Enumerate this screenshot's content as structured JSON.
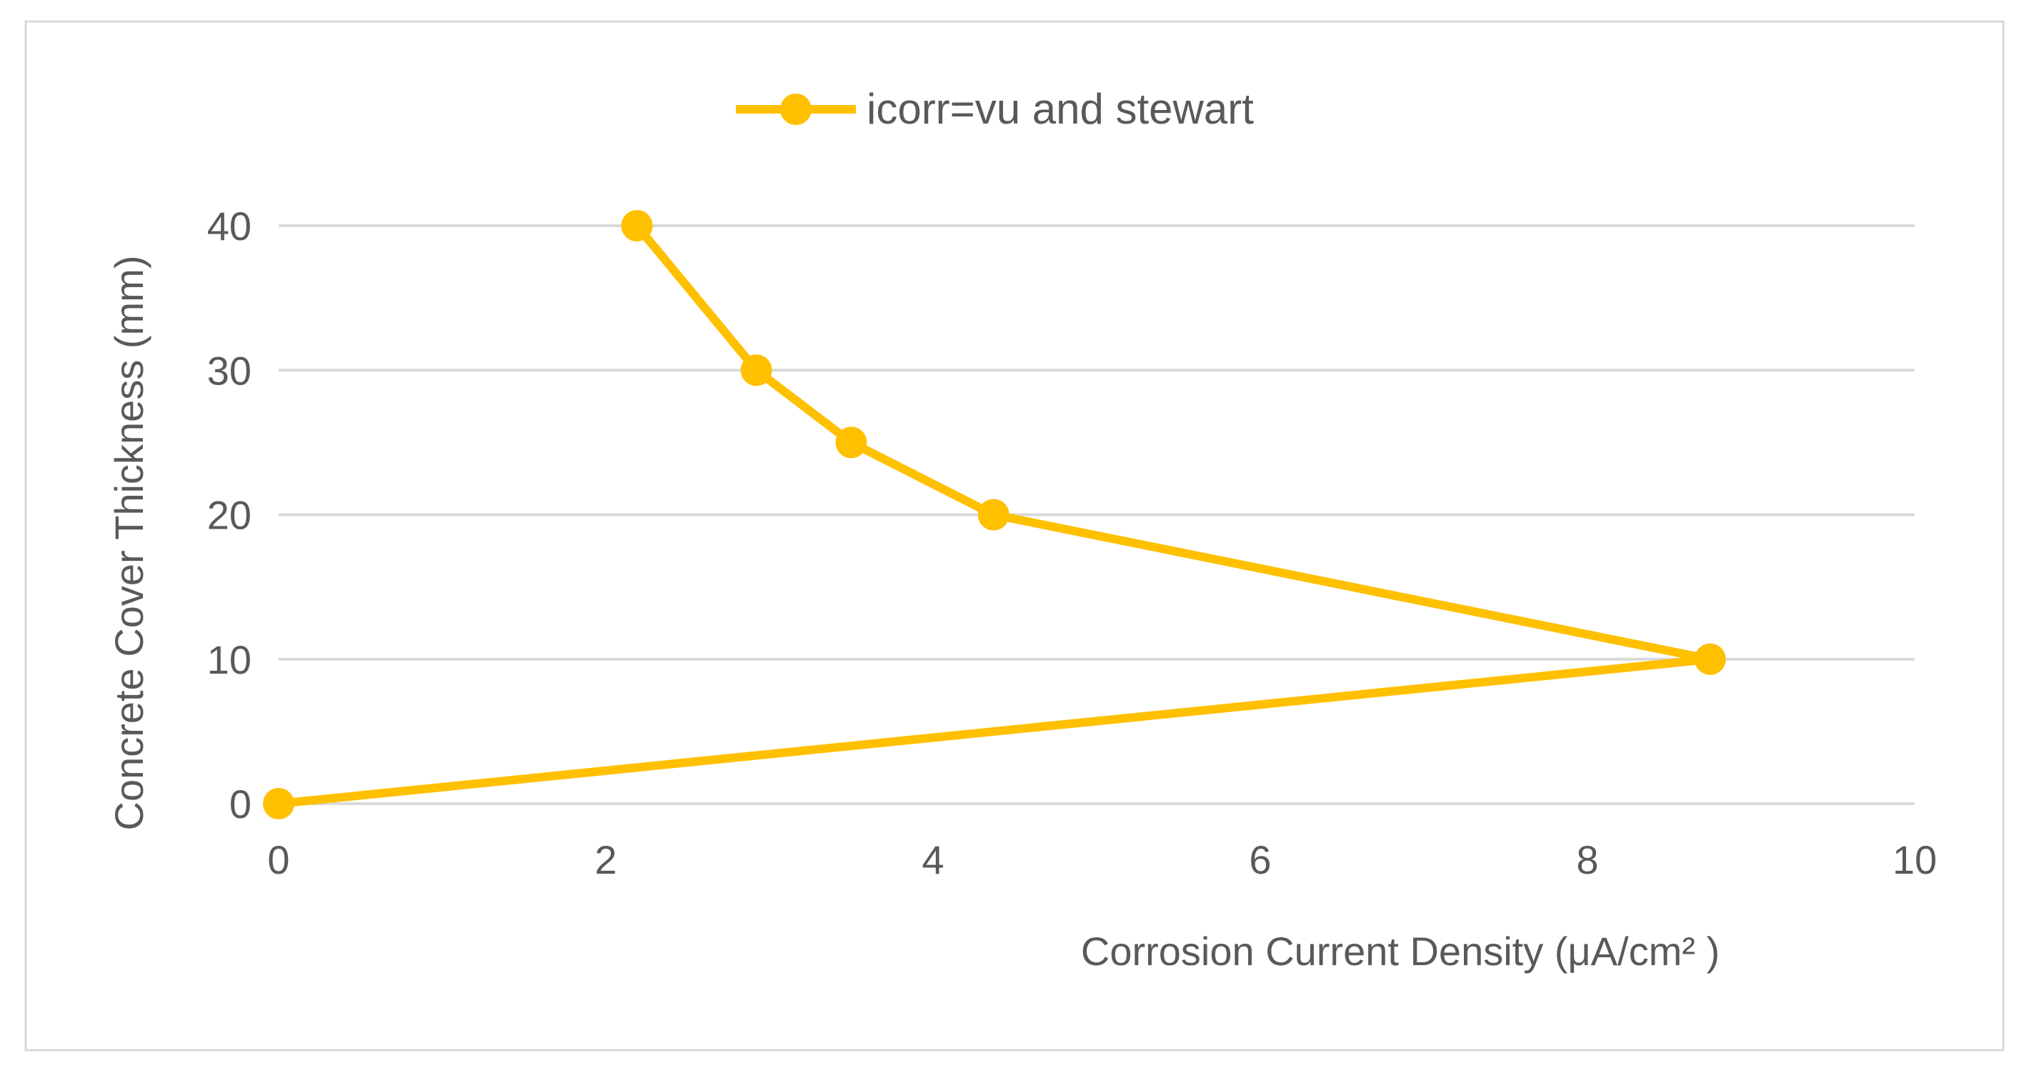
{
  "chart_data": {
    "type": "line",
    "title": "",
    "xlabel": "Corrosion Current Density (μA/cm² )",
    "ylabel": "Concrete Cover Thickness (mm)",
    "xlim": [
      0,
      10
    ],
    "ylim": [
      0,
      40
    ],
    "x_ticks": [
      "0",
      "2",
      "4",
      "6",
      "8",
      "10"
    ],
    "y_ticks": [
      "0",
      "10",
      "20",
      "30",
      "40"
    ],
    "grid": "horizontal",
    "legend_position": "top-center",
    "series": [
      {
        "name": "icorr=vu and stewart",
        "color": "#FFC000",
        "marker": "circle",
        "x": [
          0,
          8.75,
          4.37,
          3.5,
          2.92,
          2.19
        ],
        "y": [
          0,
          10,
          20,
          25,
          30,
          40
        ]
      }
    ]
  }
}
